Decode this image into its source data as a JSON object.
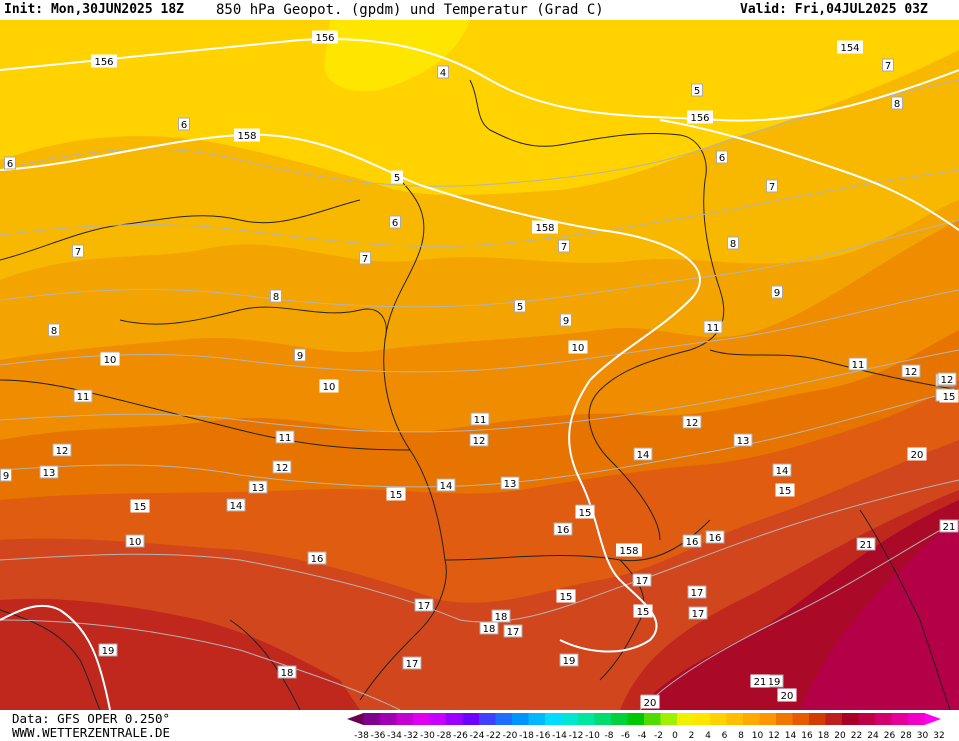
{
  "header": {
    "init": "Init: Mon,30JUN2025 18Z",
    "title": "850 hPa Geopot. (gpdm) und Temperatur (Grad C)",
    "valid": "Valid: Fri,04JUL2025 03Z"
  },
  "footer": {
    "data_source": "Data: GFS OPER 0.250°",
    "website": "WWW.WETTERZENTRALE.DE"
  },
  "colorbar": {
    "ticks": [
      "-38",
      "-36",
      "-34",
      "-32",
      "-30",
      "-28",
      "-26",
      "-24",
      "-22",
      "-20",
      "-18",
      "-16",
      "-14",
      "-12",
      "-10",
      "-8",
      "-6",
      "-4",
      "-2",
      "0",
      "2",
      "4",
      "6",
      "8",
      "10",
      "12",
      "14",
      "16",
      "18",
      "20",
      "22",
      "24",
      "26",
      "28",
      "30",
      "32"
    ],
    "colors": [
      "#6a0050",
      "#7e008e",
      "#a000b4",
      "#c400d2",
      "#e000f0",
      "#c800ff",
      "#9a00ff",
      "#6e00ff",
      "#4040ff",
      "#1e6eff",
      "#0096ff",
      "#00b8ff",
      "#00dcff",
      "#00e6d2",
      "#00e6a0",
      "#00dc6e",
      "#00d23c",
      "#00c800",
      "#50dc00",
      "#a0f000",
      "#f0f000",
      "#ffe600",
      "#ffd200",
      "#ffbe00",
      "#ffaa00",
      "#ff9600",
      "#f07800",
      "#e65a00",
      "#d23c00",
      "#be1e1e",
      "#aa0028",
      "#be0046",
      "#d2006e",
      "#e6009a",
      "#f000c8",
      "#ff00f0"
    ]
  },
  "temperature_labels": [
    "4",
    "5",
    "5",
    "6",
    "6",
    "6",
    "6",
    "7",
    "7",
    "7",
    "7",
    "7",
    "8",
    "8",
    "8",
    "8",
    "9",
    "9",
    "9",
    "9",
    "10",
    "11",
    "11",
    "11",
    "11",
    "11",
    "11",
    "12",
    "12",
    "12",
    "12",
    "12",
    "13",
    "13",
    "13",
    "13",
    "13",
    "14",
    "14",
    "14",
    "14",
    "15",
    "16",
    "16",
    "16",
    "16",
    "16",
    "17",
    "17",
    "17",
    "17",
    "17",
    "17",
    "18",
    "18",
    "18",
    "19",
    "19",
    "19",
    "20",
    "21",
    "21",
    "10",
    "12",
    "6",
    "4"
  ],
  "geopotential_labels": [
    "156",
    "156",
    "156",
    "154",
    "158",
    "158",
    "158",
    "5",
    "10",
    "10",
    "10",
    "15",
    "15",
    "15",
    "15",
    "15",
    "15",
    "15",
    "20",
    "20",
    "20",
    "21"
  ]
}
